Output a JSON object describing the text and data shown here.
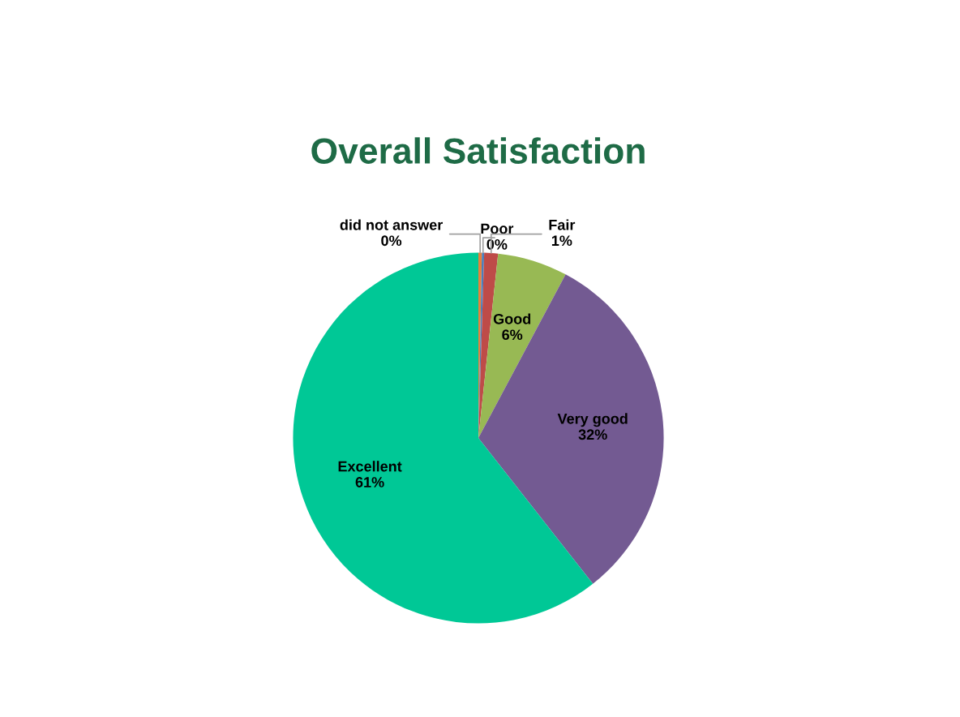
{
  "chart_data": {
    "type": "pie",
    "title": "Overall Satisfaction",
    "categories": [
      "did not answer",
      "Poor",
      "Fair",
      "Good",
      "Very good",
      "Excellent"
    ],
    "values": [
      0.3,
      0.2,
      1.2,
      6.1,
      31.6,
      60.6
    ],
    "value_labels": [
      "0%",
      "0%",
      "1%",
      "6%",
      "32%",
      "61%"
    ],
    "colors": [
      "#e8803a",
      "#4a7ebb",
      "#be4b48",
      "#98b954",
      "#735a92",
      "#00c896"
    ],
    "legend": false
  }
}
